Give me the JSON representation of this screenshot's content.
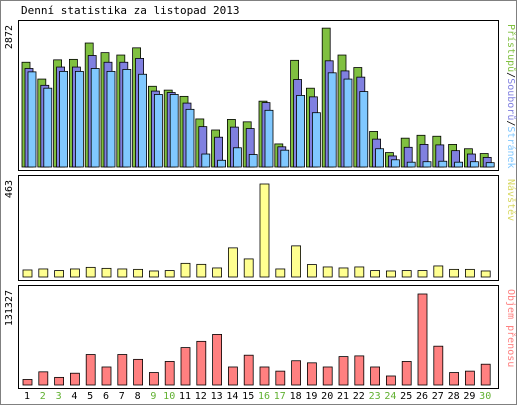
{
  "title": "Denní statistika za listopad 2013",
  "colors": {
    "hits": "#80c040",
    "files": "#8080e0",
    "pages": "#80c8ff",
    "visits": "#ffff90",
    "kbytes": "#ff8080",
    "weekend": "#60b030",
    "text": "#000000"
  },
  "chart_data": [
    {
      "type": "bar",
      "categories": [
        "1",
        "2",
        "3",
        "4",
        "5",
        "6",
        "7",
        "8",
        "9",
        "10",
        "11",
        "12",
        "13",
        "14",
        "15",
        "16",
        "17",
        "18",
        "19",
        "20",
        "21",
        "22",
        "23",
        "24",
        "25",
        "26",
        "27",
        "28",
        "29",
        "30"
      ],
      "weekend_days": [
        "2",
        "3",
        "9",
        "10",
        "16",
        "17",
        "23",
        "24",
        "30"
      ],
      "scale_label": "2872",
      "ymax": 2872,
      "legend": {
        "hits": "Přístupů",
        "files": "Souborů",
        "pages": "Stránek",
        "sep1": "/",
        "sep2": "/"
      },
      "series": [
        {
          "key": "hits",
          "values": [
            2180,
            1830,
            2230,
            2240,
            2580,
            2380,
            2330,
            2480,
            1680,
            1600,
            1470,
            1000,
            770,
            990,
            940,
            1370,
            480,
            2220,
            1640,
            2890,
            2330,
            2070,
            740,
            300,
            600,
            660,
            640,
            470,
            380,
            280
          ]
        },
        {
          "key": "files",
          "values": [
            2050,
            1700,
            2080,
            2080,
            2320,
            2180,
            2180,
            2260,
            1580,
            1550,
            1330,
            840,
            620,
            830,
            800,
            1340,
            420,
            1820,
            1460,
            2210,
            2000,
            1870,
            580,
            230,
            410,
            470,
            460,
            340,
            270,
            200
          ]
        },
        {
          "key": "pages",
          "values": [
            1980,
            1640,
            1990,
            1990,
            2050,
            1990,
            2030,
            1930,
            1510,
            1510,
            1200,
            270,
            140,
            400,
            260,
            1180,
            350,
            1490,
            1130,
            1960,
            1830,
            1570,
            380,
            150,
            100,
            110,
            120,
            100,
            110,
            90
          ]
        }
      ]
    },
    {
      "type": "bar",
      "scale_label": "463",
      "ymax": 463,
      "legend": "Návštěv",
      "series": [
        {
          "key": "visits",
          "values": [
            35,
            40,
            32,
            40,
            48,
            43,
            40,
            38,
            30,
            32,
            68,
            63,
            45,
            145,
            90,
            463,
            40,
            155,
            62,
            50,
            45,
            50,
            32,
            30,
            32,
            32,
            55,
            38,
            38,
            30
          ]
        }
      ]
    },
    {
      "type": "bar",
      "scale_label": "131327",
      "ymax": 131327,
      "legend": "Objem přenosu",
      "series": [
        {
          "key": "kbytes",
          "values": [
            8000,
            19000,
            11000,
            17000,
            44000,
            26000,
            44000,
            37000,
            18000,
            34000,
            54000,
            63000,
            73000,
            26000,
            43000,
            26000,
            20000,
            35000,
            32000,
            26000,
            41000,
            42000,
            26000,
            13000,
            34000,
            131327,
            56000,
            18000,
            20000,
            30000
          ]
        }
      ]
    }
  ]
}
